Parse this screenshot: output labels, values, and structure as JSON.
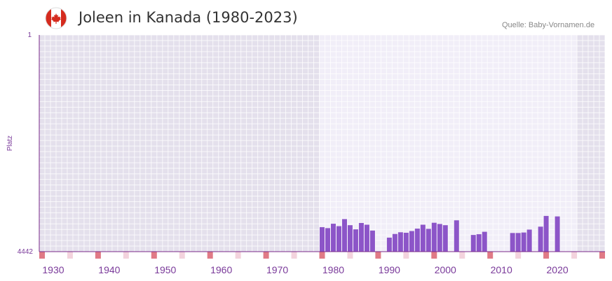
{
  "header": {
    "title": "Joleen in Kanada (1980-2023)",
    "source": "Quelle: Baby-Vornamen.de",
    "flag_icon": "canada-flag-icon"
  },
  "colors": {
    "bar": "#8c55c8",
    "axis": "#7a2a8a",
    "tick_text": "#7a3a9a",
    "bg_outside": "#e4e0ec",
    "bg_inside": "#f1eef8",
    "grid": "#ffffff",
    "decade_marker": "#e07a86",
    "mid_marker": "#f3d3dd",
    "flag_red": "#d52b1e"
  },
  "chart_data": {
    "type": "bar",
    "title": "Joleen in Kanada (1980-2023)",
    "xlabel": "",
    "ylabel": "Platz",
    "y_reversed": true,
    "ylim": [
      1,
      4442
    ],
    "y_ticks": [
      "1",
      "4442"
    ],
    "xlim": [
      1928,
      2029
    ],
    "x_ticks": [
      "1930",
      "1940",
      "1950",
      "1960",
      "1970",
      "1980",
      "1990",
      "2000",
      "2010",
      "2020"
    ],
    "data_range": [
      1978,
      2023
    ],
    "series": [
      {
        "name": "Joleen",
        "x": [
          1978,
          1979,
          1980,
          1981,
          1982,
          1983,
          1984,
          1985,
          1986,
          1987,
          1990,
          1991,
          1992,
          1993,
          1994,
          1995,
          1996,
          1997,
          1998,
          1999,
          2000,
          2002,
          2005,
          2006,
          2007,
          2012,
          2013,
          2014,
          2015,
          2017,
          2018,
          2020
        ],
        "values": [
          3940,
          3960,
          3870,
          3920,
          3775,
          3900,
          3985,
          3855,
          3890,
          4010,
          4155,
          4080,
          4045,
          4055,
          4020,
          3970,
          3890,
          3975,
          3850,
          3875,
          3900,
          3800,
          4100,
          4085,
          4035,
          4060,
          4060,
          4050,
          3990,
          3930,
          3710,
          3720
        ]
      }
    ]
  }
}
